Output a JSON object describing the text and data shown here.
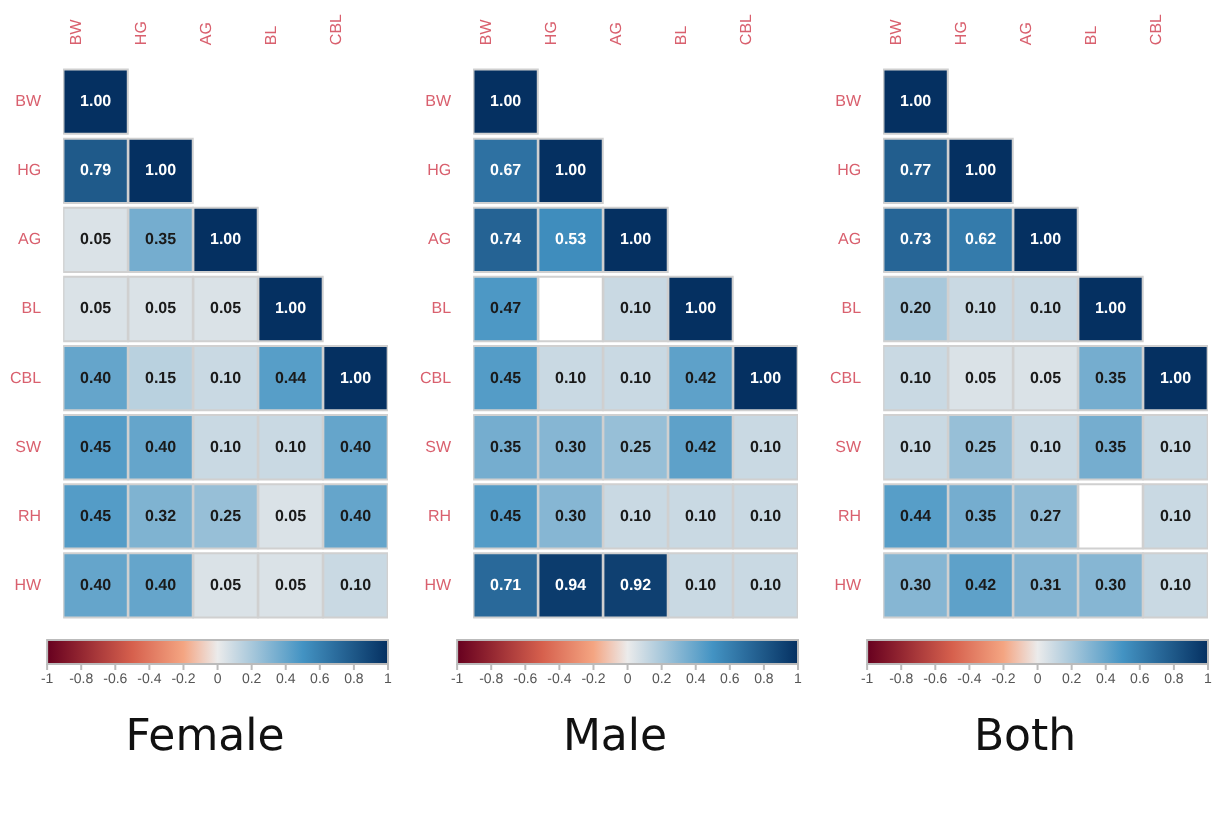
{
  "chart_data": [
    {
      "type": "heatmap",
      "title": "Female",
      "categories": [
        "BW",
        "HG",
        "AG",
        "BL",
        "CBL"
      ],
      "y_categories": [
        "BW",
        "HG",
        "AG",
        "BL",
        "CBL",
        "SW",
        "RH",
        "HW"
      ],
      "cells": [
        [
          1.0,
          null,
          null,
          null,
          null
        ],
        [
          0.79,
          1.0,
          null,
          null,
          null
        ],
        [
          0.05,
          0.35,
          1.0,
          null,
          null
        ],
        [
          0.05,
          0.05,
          0.05,
          1.0,
          null
        ],
        [
          0.4,
          0.15,
          0.1,
          0.44,
          1.0
        ],
        [
          0.45,
          0.4,
          0.1,
          0.1,
          0.4
        ],
        [
          0.45,
          0.32,
          0.25,
          0.05,
          0.4
        ],
        [
          0.4,
          0.4,
          0.05,
          0.05,
          0.1
        ]
      ],
      "cell_labels": [
        [
          "1.00",
          null,
          null,
          null,
          null
        ],
        [
          "0.79",
          "1.00",
          null,
          null,
          null
        ],
        [
          "0.05",
          "0.35",
          "1.00",
          null,
          null
        ],
        [
          "0.05",
          "0.05",
          "0.05",
          "1.00",
          null
        ],
        [
          "0.40",
          "0.15",
          "0.10",
          "0.44",
          "1.00"
        ],
        [
          "0.45",
          "0.40",
          "0.10",
          "0.10",
          "0.40"
        ],
        [
          "0.45",
          "0.32",
          "0.25",
          "0.05",
          "0.40"
        ],
        [
          "0.40",
          "0.40",
          "0.05",
          "0.05",
          "0.10"
        ]
      ],
      "clim": [
        -1,
        1
      ],
      "cticks": [
        -1,
        -0.8,
        -0.6,
        -0.4,
        -0.2,
        0,
        0.2,
        0.4,
        0.6,
        0.8,
        1
      ]
    },
    {
      "type": "heatmap",
      "title": "Male",
      "categories": [
        "BW",
        "HG",
        "AG",
        "BL",
        "CBL"
      ],
      "y_categories": [
        "BW",
        "HG",
        "AG",
        "BL",
        "CBL",
        "SW",
        "RH",
        "HW"
      ],
      "cells": [
        [
          1.0,
          null,
          null,
          null,
          null
        ],
        [
          0.67,
          1.0,
          null,
          null,
          null
        ],
        [
          0.74,
          0.53,
          1.0,
          null,
          null
        ],
        [
          0.47,
          null,
          0.1,
          1.0,
          null
        ],
        [
          0.45,
          0.1,
          0.1,
          0.42,
          1.0
        ],
        [
          0.35,
          0.3,
          0.25,
          0.42,
          0.1
        ],
        [
          0.45,
          0.3,
          0.1,
          0.1,
          0.1
        ],
        [
          0.71,
          0.94,
          0.92,
          0.1,
          0.1
        ]
      ],
      "cell_labels": [
        [
          "1.00",
          null,
          null,
          null,
          null
        ],
        [
          "0.67",
          "1.00",
          null,
          null,
          null
        ],
        [
          "0.74",
          "0.53",
          "1.00",
          null,
          null
        ],
        [
          "0.47",
          null,
          "0.10",
          "1.00",
          null
        ],
        [
          "0.45",
          "0.10",
          "0.10",
          "0.42",
          "1.00"
        ],
        [
          "0.35",
          "0.30",
          "0.25",
          "0.42",
          "0.10"
        ],
        [
          "0.45",
          "0.30",
          "0.10",
          "0.10",
          "0.10"
        ],
        [
          "0.71",
          "0.94",
          "0.92",
          "0.10",
          "0.10"
        ]
      ],
      "clim": [
        -1,
        1
      ],
      "cticks": [
        -1,
        -0.8,
        -0.6,
        -0.4,
        -0.2,
        0,
        0.2,
        0.4,
        0.6,
        0.8,
        1
      ]
    },
    {
      "type": "heatmap",
      "title": "Both",
      "categories": [
        "BW",
        "HG",
        "AG",
        "BL",
        "CBL"
      ],
      "y_categories": [
        "BW",
        "HG",
        "AG",
        "BL",
        "CBL",
        "SW",
        "RH",
        "HW"
      ],
      "cells": [
        [
          1.0,
          null,
          null,
          null,
          null
        ],
        [
          0.77,
          1.0,
          null,
          null,
          null
        ],
        [
          0.73,
          0.62,
          1.0,
          null,
          null
        ],
        [
          0.2,
          0.1,
          0.1,
          1.0,
          null
        ],
        [
          0.1,
          0.05,
          0.05,
          0.35,
          1.0
        ],
        [
          0.1,
          0.25,
          0.1,
          0.35,
          0.1
        ],
        [
          0.44,
          0.35,
          0.27,
          null,
          0.1
        ],
        [
          0.3,
          0.42,
          0.31,
          0.3,
          0.1
        ]
      ],
      "cell_labels": [
        [
          "1.00",
          null,
          null,
          null,
          null
        ],
        [
          "0.77",
          "1.00",
          null,
          null,
          null
        ],
        [
          "0.73",
          "0.62",
          "1.00",
          null,
          null
        ],
        [
          "0.20",
          "0.10",
          "0.10",
          "1.00",
          null
        ],
        [
          "0.10",
          "0.05",
          "0.05",
          "0.35",
          "1.00"
        ],
        [
          "0.10",
          "0.25",
          "0.10",
          "0.35",
          "0.10"
        ],
        [
          "0.44",
          "0.35",
          "0.27",
          null,
          "0.10"
        ],
        [
          "0.30",
          "0.42",
          "0.31",
          "0.30",
          "0.10"
        ]
      ],
      "clim": [
        -1,
        1
      ],
      "cticks": [
        -1,
        -0.8,
        -0.6,
        -0.4,
        -0.2,
        0,
        0.2,
        0.4,
        0.6,
        0.8,
        1
      ]
    }
  ]
}
